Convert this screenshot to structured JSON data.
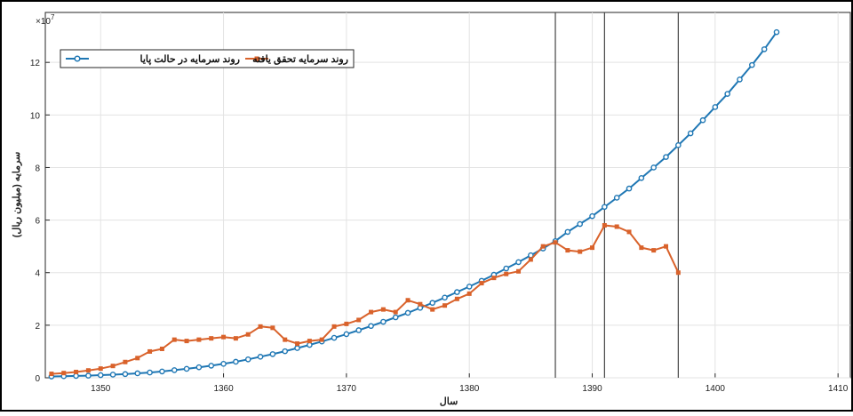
{
  "chart_data": {
    "type": "line",
    "title": "",
    "xlabel": "سال",
    "ylabel": "سرمایه (میلیون ریال)",
    "y_exponent_label": "×10",
    "y_exponent_power": "7",
    "xlim": [
      1345.5,
      1411
    ],
    "ylim": [
      0,
      13.9
    ],
    "x_ticks": [
      "1350",
      "1360",
      "1370",
      "1380",
      "1390",
      "1400",
      "1410"
    ],
    "y_ticks": [
      "0",
      "2",
      "4",
      "6",
      "8",
      "10",
      "12"
    ],
    "grid": true,
    "legend_position": "top-left",
    "vertical_lines": [
      1387,
      1391,
      1397
    ],
    "series": [
      {
        "name": "روند سرمایه در حالت پایا",
        "color": "#1f77b4",
        "marker": "circle",
        "x": [
          1346,
          1347,
          1348,
          1349,
          1350,
          1351,
          1352,
          1353,
          1354,
          1355,
          1356,
          1357,
          1358,
          1359,
          1360,
          1361,
          1362,
          1363,
          1364,
          1365,
          1366,
          1367,
          1368,
          1369,
          1370,
          1371,
          1372,
          1373,
          1374,
          1375,
          1376,
          1377,
          1378,
          1379,
          1380,
          1381,
          1382,
          1383,
          1384,
          1385,
          1386,
          1387,
          1388,
          1389,
          1390,
          1391,
          1392,
          1393,
          1394,
          1395,
          1396,
          1397,
          1398,
          1399,
          1400,
          1401,
          1402,
          1403,
          1404,
          1405
        ],
        "y": [
          0.05,
          0.06,
          0.07,
          0.08,
          0.1,
          0.12,
          0.14,
          0.17,
          0.2,
          0.24,
          0.29,
          0.34,
          0.4,
          0.46,
          0.53,
          0.61,
          0.7,
          0.8,
          0.9,
          1.01,
          1.13,
          1.25,
          1.38,
          1.52,
          1.66,
          1.81,
          1.97,
          2.13,
          2.3,
          2.47,
          2.66,
          2.85,
          3.05,
          3.26,
          3.47,
          3.69,
          3.92,
          4.16,
          4.4,
          4.66,
          4.92,
          5.2,
          5.55,
          5.85,
          6.15,
          6.5,
          6.85,
          7.2,
          7.6,
          8.0,
          8.4,
          8.85,
          9.3,
          9.8,
          10.3,
          10.8,
          11.35,
          11.9,
          12.5,
          13.15
        ]
      },
      {
        "name": "روند سرمایه تحقق یافته",
        "color": "#d9622b",
        "marker": "square",
        "x": [
          1346,
          1347,
          1348,
          1349,
          1350,
          1351,
          1352,
          1353,
          1354,
          1355,
          1356,
          1357,
          1358,
          1359,
          1360,
          1361,
          1362,
          1363,
          1364,
          1365,
          1366,
          1367,
          1368,
          1369,
          1370,
          1371,
          1372,
          1373,
          1374,
          1375,
          1376,
          1377,
          1378,
          1379,
          1380,
          1381,
          1382,
          1383,
          1384,
          1385,
          1386,
          1387,
          1388,
          1389,
          1390,
          1391,
          1392,
          1393,
          1394,
          1395,
          1396,
          1397
        ],
        "y": [
          0.15,
          0.18,
          0.22,
          0.28,
          0.35,
          0.45,
          0.6,
          0.75,
          1.0,
          1.1,
          1.45,
          1.4,
          1.45,
          1.5,
          1.55,
          1.5,
          1.65,
          1.95,
          1.9,
          1.45,
          1.3,
          1.4,
          1.45,
          1.95,
          2.05,
          2.2,
          2.5,
          2.6,
          2.5,
          2.95,
          2.8,
          2.6,
          2.75,
          3.0,
          3.2,
          3.6,
          3.8,
          3.95,
          4.05,
          4.5,
          5.0,
          5.15,
          4.85,
          4.8,
          4.95,
          5.8,
          5.75,
          5.55,
          4.95,
          4.85,
          5.0,
          4.0
        ]
      }
    ]
  }
}
